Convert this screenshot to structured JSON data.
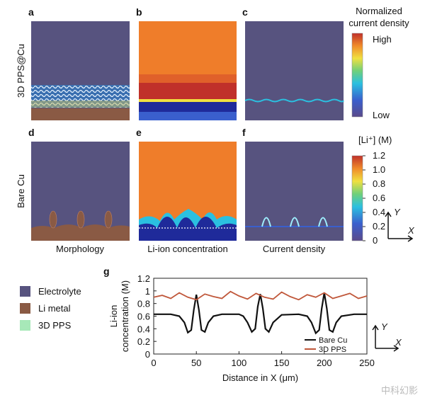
{
  "panel_letters": [
    "a",
    "b",
    "c",
    "d",
    "e",
    "f"
  ],
  "row_labels": [
    "3D PPS@Cu",
    "Bare Cu"
  ],
  "column_captions": [
    "Morphology",
    "Li-ion concentration",
    "Current density"
  ],
  "colorbar_current": {
    "title_lines": [
      "Normalized",
      "current density"
    ],
    "high": "High",
    "low": "Low"
  },
  "colorbar_li": {
    "title": "[Li⁺] (M)",
    "lim": [
      0,
      1.2
    ],
    "ticks": [
      1.2,
      {
        "value": 1,
        "label": "1.0"
      },
      0.8,
      0.6,
      0.4,
      0.2,
      0
    ]
  },
  "axes_icon": {
    "y": "Y",
    "x": "X"
  },
  "legend": [
    {
      "name": "Electrolyte",
      "color": "#57537f"
    },
    {
      "name": "Li metal",
      "color": "#8a5a44"
    },
    {
      "name": "3D PPS",
      "color": "#a7e8b8"
    }
  ],
  "chart_data": {
    "type": "line",
    "panel_letter": "g",
    "y_label_lines": [
      "Li-ion",
      "concentration (M)"
    ],
    "x_label": "Distance in X (μm)",
    "xlim": [
      0,
      250
    ],
    "xticks": [
      0,
      50,
      100,
      150,
      200,
      250
    ],
    "ylim": [
      0,
      1.2
    ],
    "yticks": [
      0,
      0.2,
      0.4,
      0.6,
      0.8,
      1,
      1.2
    ],
    "series": [
      {
        "name": "Bare Cu",
        "color": "#111111",
        "x": [
          0,
          20,
          30,
          36,
          40,
          44,
          47,
          50,
          53,
          56,
          60,
          64,
          70,
          80,
          100,
          105,
          110,
          115,
          119,
          122,
          125,
          128,
          131,
          135,
          140,
          150,
          170,
          180,
          185,
          190,
          194,
          197,
          200,
          203,
          206,
          210,
          214,
          220,
          235,
          250
        ],
        "values": [
          0.63,
          0.63,
          0.6,
          0.5,
          0.34,
          0.38,
          0.7,
          0.94,
          0.7,
          0.38,
          0.35,
          0.5,
          0.6,
          0.63,
          0.63,
          0.6,
          0.5,
          0.35,
          0.4,
          0.75,
          0.95,
          0.72,
          0.4,
          0.35,
          0.5,
          0.62,
          0.63,
          0.6,
          0.5,
          0.33,
          0.38,
          0.72,
          0.97,
          0.72,
          0.38,
          0.35,
          0.5,
          0.6,
          0.63,
          0.63
        ]
      },
      {
        "name": "3D PPS",
        "color": "#c0573a",
        "x": [
          0,
          10,
          20,
          30,
          40,
          50,
          60,
          70,
          80,
          90,
          100,
          110,
          120,
          130,
          140,
          150,
          160,
          170,
          180,
          190,
          200,
          210,
          220,
          230,
          240,
          250
        ],
        "values": [
          0.9,
          0.93,
          0.88,
          0.97,
          0.9,
          0.86,
          0.95,
          0.91,
          0.88,
          0.99,
          0.92,
          0.87,
          0.96,
          0.9,
          0.87,
          0.98,
          0.91,
          0.86,
          0.94,
          0.9,
          0.97,
          0.88,
          0.92,
          0.96,
          0.88,
          0.92
        ]
      }
    ]
  },
  "watermark": "中科幻影"
}
